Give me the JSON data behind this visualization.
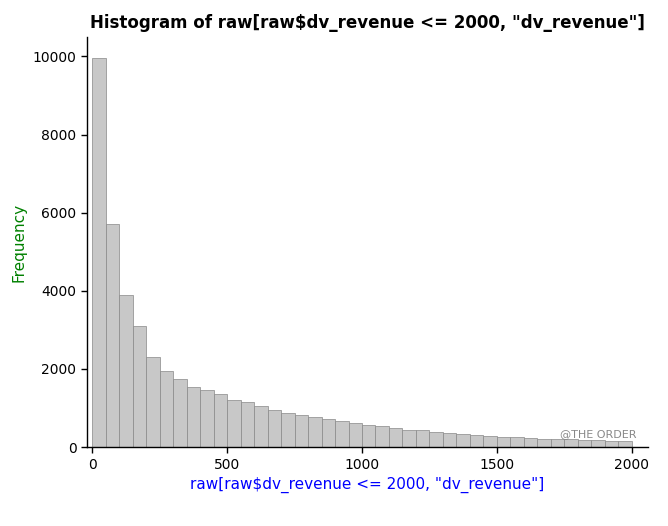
{
  "title": "Histogram of raw[raw$dv_revenue <= 2000, \"dv_revenue\"]",
  "xlabel": "raw[raw$dv_revenue <= 2000, \"dv_revenue\"]",
  "ylabel": "Frequency",
  "bar_color": "#c8c8c8",
  "bar_edge_color": "#888888",
  "xlim": [
    -20,
    2060
  ],
  "ylim": [
    0,
    10500
  ],
  "yticks": [
    0,
    2000,
    4000,
    6000,
    8000,
    10000
  ],
  "xticks": [
    0,
    500,
    1000,
    1500,
    2000
  ],
  "bin_width": 50,
  "bin_heights": [
    9950,
    5700,
    3900,
    3100,
    2300,
    1950,
    1750,
    1550,
    1450,
    1350,
    1200,
    1150,
    1050,
    950,
    870,
    820,
    760,
    720,
    670,
    610,
    560,
    530,
    490,
    450,
    430,
    390,
    360,
    340,
    310,
    290,
    270,
    260,
    240,
    220,
    210,
    200,
    185,
    175,
    165,
    155
  ],
  "background_color": "#ffffff",
  "title_fontsize": 12,
  "axis_label_fontsize": 11,
  "tick_fontsize": 10,
  "ylabel_color": "#008000",
  "xlabel_color": "#0000FF",
  "watermark": "@THE ORDER"
}
